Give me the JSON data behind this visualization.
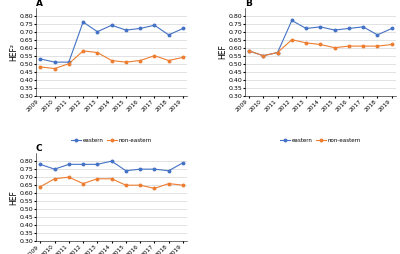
{
  "years": [
    2009,
    2010,
    2011,
    2012,
    2013,
    2014,
    2015,
    2016,
    2017,
    2018,
    2019
  ],
  "panel_A": {
    "title": "A",
    "ylabel": "HEF²",
    "eastern": [
      0.53,
      0.51,
      0.51,
      0.76,
      0.7,
      0.74,
      0.71,
      0.72,
      0.74,
      0.68,
      0.72
    ],
    "non_eastern": [
      0.48,
      0.47,
      0.5,
      0.58,
      0.57,
      0.52,
      0.51,
      0.52,
      0.55,
      0.52,
      0.54
    ],
    "ylim": [
      0.3,
      0.85
    ],
    "yticks": [
      0.3,
      0.35,
      0.4,
      0.45,
      0.5,
      0.55,
      0.6,
      0.65,
      0.7,
      0.75,
      0.8
    ]
  },
  "panel_B": {
    "title": "B",
    "ylabel": "HEF",
    "eastern": [
      0.58,
      0.55,
      0.57,
      0.77,
      0.72,
      0.73,
      0.71,
      0.72,
      0.73,
      0.68,
      0.72
    ],
    "non_eastern": [
      0.58,
      0.55,
      0.57,
      0.65,
      0.63,
      0.62,
      0.6,
      0.61,
      0.61,
      0.61,
      0.62
    ],
    "ylim": [
      0.3,
      0.85
    ],
    "yticks": [
      0.3,
      0.35,
      0.4,
      0.45,
      0.5,
      0.55,
      0.6,
      0.65,
      0.7,
      0.75,
      0.8
    ]
  },
  "panel_C": {
    "title": "C",
    "ylabel": "HEF",
    "eastern": [
      0.78,
      0.75,
      0.78,
      0.78,
      0.78,
      0.8,
      0.74,
      0.75,
      0.75,
      0.74,
      0.79
    ],
    "non_eastern": [
      0.64,
      0.69,
      0.7,
      0.66,
      0.69,
      0.69,
      0.65,
      0.65,
      0.63,
      0.66,
      0.65
    ],
    "ylim": [
      0.3,
      0.85
    ],
    "yticks": [
      0.3,
      0.35,
      0.4,
      0.45,
      0.5,
      0.55,
      0.6,
      0.65,
      0.7,
      0.75,
      0.8
    ]
  },
  "eastern_color": "#4472C4",
  "non_eastern_color": "#ED7D31",
  "legend_labels": [
    "eastern",
    "non-eastern"
  ],
  "background_color": "#FFFFFF",
  "grid_color": "#CCCCCC"
}
